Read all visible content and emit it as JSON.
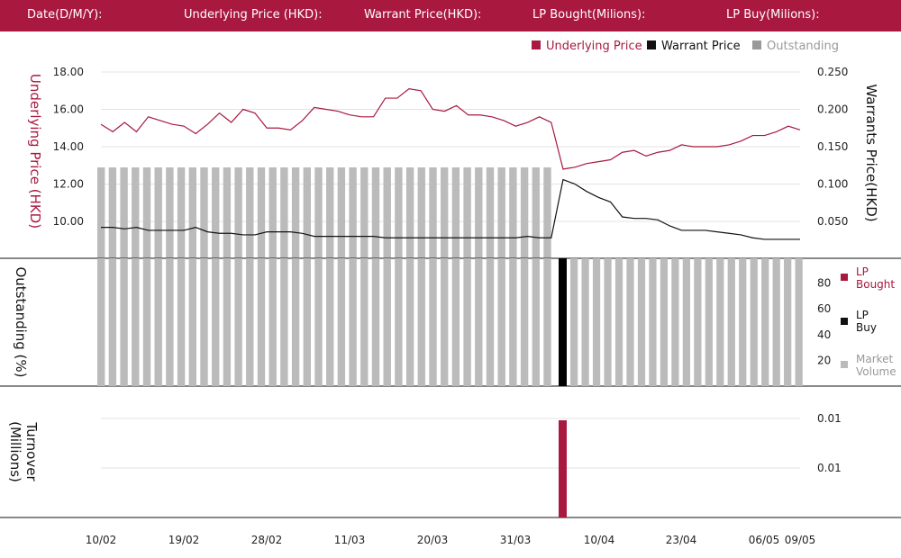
{
  "header": {
    "date_label": "Date(D/M/Y):",
    "underlying_label": "Underlying Price (HKD):",
    "warrant_label": "Warrant  Price(HKD):",
    "lp_bought_label": "LP Bought(Milions):",
    "lp_buy_label": "LP Buy(Milions):"
  },
  "colors": {
    "brand": "#a8183f",
    "underlying": "#a8183f",
    "warrant": "#111111",
    "outstanding": "#bbbbbb",
    "grid": "#e3e3e3"
  },
  "chart_data": [
    {
      "type": "line",
      "legend": [
        "Underlying Price",
        "Warrant  Price",
        "Outstanding"
      ],
      "legend_position": "top-right",
      "ylabel_left": "Underlying Price (HKD)",
      "ylabel_right": "Warrants  Price(HKD)",
      "left_ticks": [
        "10.00",
        "12.00",
        "14.00",
        "16.00",
        "18.00"
      ],
      "right_ticks": [
        "0.050",
        "0.100",
        "0.150",
        "0.200",
        "0.250"
      ],
      "ylim_left": [
        8,
        18.5
      ],
      "ylim_right": [
        0.0,
        0.255
      ],
      "x_labels": [
        "10/02",
        "19/02",
        "28/02",
        "11/03",
        "20/03",
        "31/03",
        "10/04",
        "23/04",
        "06/05",
        "09/05"
      ],
      "series": [
        {
          "name": "Underlying Price",
          "values": [
            15.2,
            14.8,
            15.3,
            14.8,
            15.6,
            15.4,
            15.2,
            15.1,
            14.7,
            15.2,
            15.8,
            15.3,
            16.0,
            15.8,
            15.0,
            15.0,
            14.9,
            15.4,
            16.1,
            16.0,
            15.9,
            15.7,
            15.6,
            15.6,
            16.6,
            16.6,
            17.1,
            17.0,
            16.0,
            15.9,
            16.2,
            15.7,
            15.7,
            15.6,
            15.4,
            15.1,
            15.3,
            15.6,
            15.3,
            12.8,
            12.9,
            13.1,
            13.2,
            13.3,
            13.7,
            13.8,
            13.5,
            13.7,
            13.8,
            14.1,
            14.0,
            14.0,
            14.0,
            14.1,
            14.3,
            14.6,
            14.6,
            14.8,
            15.1,
            14.9
          ]
        },
        {
          "name": "Warrant  Price",
          "values": [
            0.042,
            0.042,
            0.04,
            0.042,
            0.038,
            0.038,
            0.038,
            0.038,
            0.042,
            0.036,
            0.034,
            0.034,
            0.032,
            0.032,
            0.036,
            0.036,
            0.036,
            0.034,
            0.03,
            0.03,
            0.03,
            0.03,
            0.03,
            0.03,
            0.028,
            0.028,
            0.028,
            0.028,
            0.028,
            0.028,
            0.028,
            0.028,
            0.028,
            0.028,
            0.028,
            0.028,
            0.03,
            0.028,
            0.028,
            0.106,
            0.1,
            0.09,
            0.082,
            0.076,
            0.056,
            0.054,
            0.054,
            0.052,
            0.044,
            0.038,
            0.038,
            0.038,
            0.036,
            0.034,
            0.032,
            0.028,
            0.026,
            0.026,
            0.026,
            0.026
          ]
        }
      ],
      "outstanding_upper_pct": 100
    },
    {
      "type": "bar",
      "ylabel": "Outstanding (%)",
      "ticks": [
        "20",
        "40",
        "60",
        "80"
      ],
      "ylim": [
        0,
        100
      ],
      "legend": [
        "LP Bought",
        "LP Buy",
        "Market Volume"
      ],
      "legend_position": "right",
      "outstanding_pct": 100,
      "bar_count_before": 40,
      "bar_count_after": 21,
      "lp_buy_bar_index": 40
    },
    {
      "type": "bar",
      "ylabel": "Turnover (Millions)",
      "ticks": [
        "0.01",
        "0.01"
      ],
      "lp_bought_bar_index": 40,
      "lp_bought_value": 0.01
    }
  ]
}
